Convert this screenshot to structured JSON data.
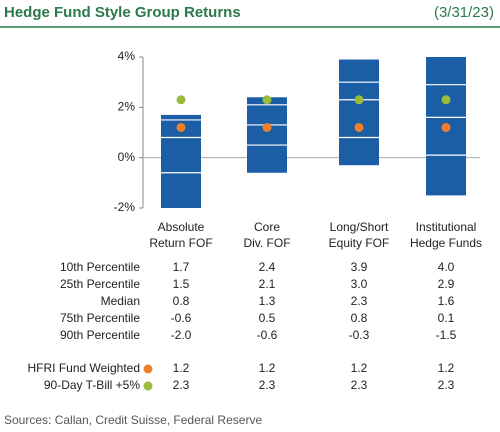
{
  "chart_data": {
    "type": "box",
    "title": "Hedge Fund Style Group Returns",
    "date": "(3/31/23)",
    "source": "Sources: Callan, Credit Suisse, Federal Reserve",
    "categories": [
      [
        "Absolute",
        "Return FOF"
      ],
      [
        "Core",
        "Div. FOF"
      ],
      [
        "Long/Short",
        "Equity FOF"
      ],
      [
        "Institutional",
        "Hedge Funds"
      ]
    ],
    "bar_color": "#1b5ea6",
    "ylim": [
      -2,
      4
    ],
    "yticks": [
      {
        "value": 4,
        "label": "4%"
      },
      {
        "value": 2,
        "label": "2%"
      },
      {
        "value": 0,
        "label": "0%"
      },
      {
        "value": -2,
        "label": "-2%"
      }
    ],
    "percentiles": [
      {
        "name": "10th Percentile",
        "values": [
          1.7,
          2.4,
          3.9,
          4.0
        ],
        "value_labels": [
          "1.7",
          "2.4",
          "3.9",
          "4.0"
        ]
      },
      {
        "name": "25th Percentile",
        "values": [
          1.5,
          2.1,
          3.0,
          2.9
        ],
        "value_labels": [
          "1.5",
          "2.1",
          "3.0",
          "2.9"
        ]
      },
      {
        "name": "Median",
        "values": [
          0.8,
          1.3,
          2.3,
          1.6
        ],
        "value_labels": [
          "0.8",
          "1.3",
          "2.3",
          "1.6"
        ]
      },
      {
        "name": "75th Percentile",
        "values": [
          -0.6,
          0.5,
          0.8,
          0.1
        ],
        "value_labels": [
          "-0.6",
          "0.5",
          "0.8",
          "0.1"
        ]
      },
      {
        "name": "90th Percentile",
        "values": [
          -2.0,
          -0.6,
          -0.3,
          -1.5
        ],
        "value_labels": [
          "-2.0",
          "-0.6",
          "-0.3",
          "-1.5"
        ]
      }
    ],
    "markers": [
      {
        "name": "HFRI Fund Weighted",
        "color": "#f07f2a",
        "values": [
          1.2,
          1.2,
          1.2,
          1.2
        ],
        "value_labels": [
          "1.2",
          "1.2",
          "1.2",
          "1.2"
        ]
      },
      {
        "name": "90-Day T-Bill +5%",
        "color": "#9bbb3b",
        "values": [
          2.3,
          2.3,
          2.3,
          2.3
        ],
        "value_labels": [
          "2.3",
          "2.3",
          "2.3",
          "2.3"
        ]
      }
    ]
  }
}
